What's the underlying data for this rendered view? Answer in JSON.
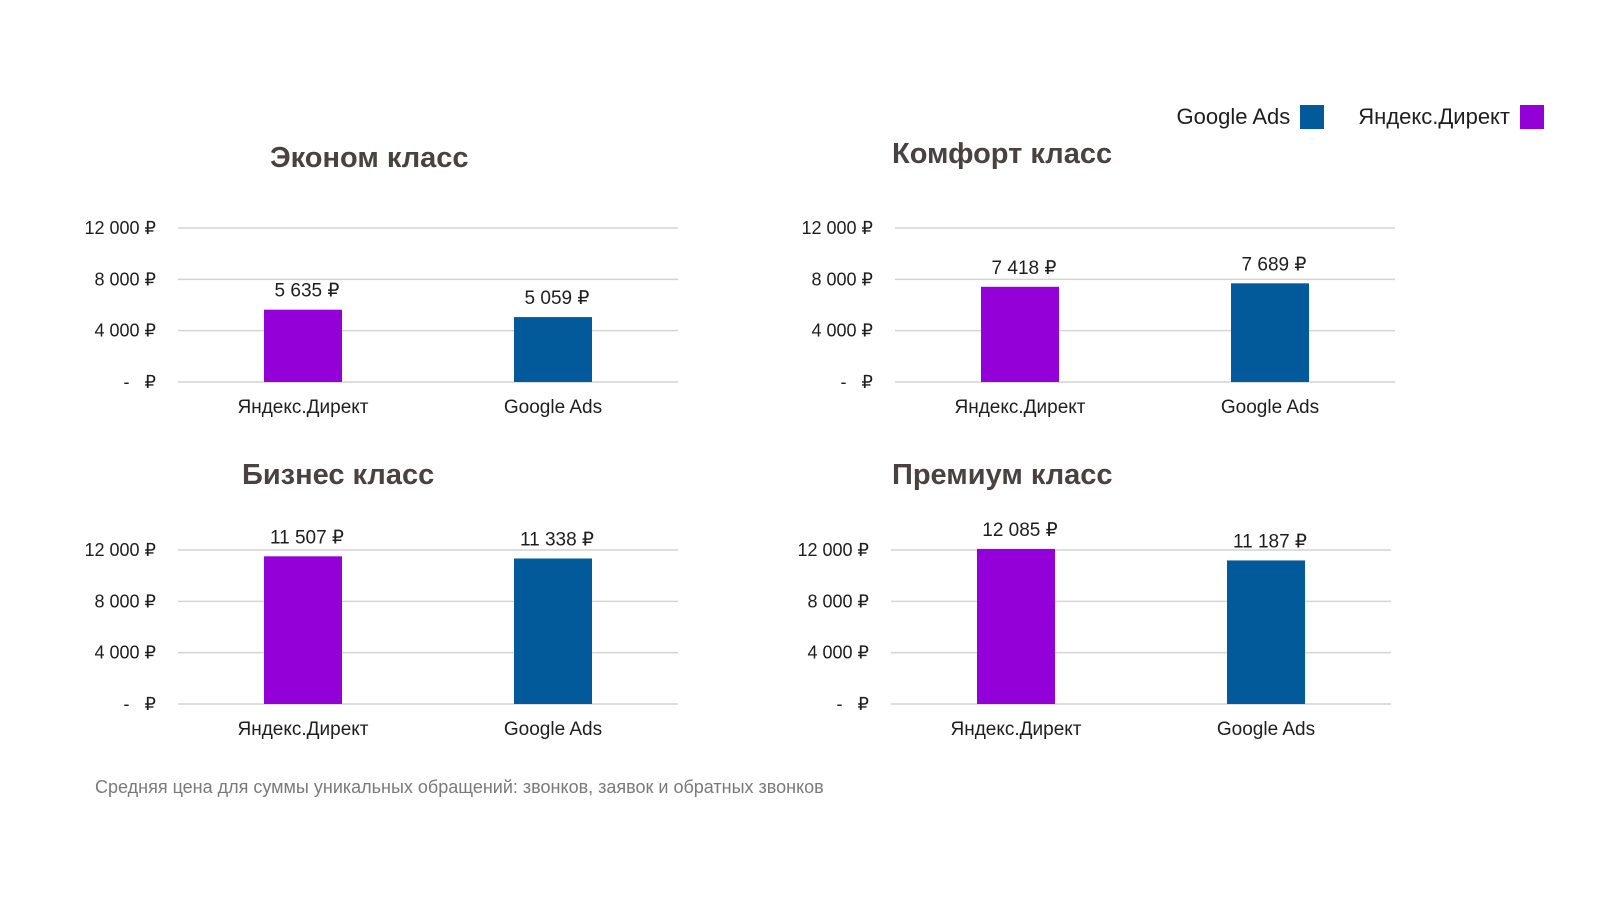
{
  "legend": {
    "items": [
      {
        "label": "Google Ads",
        "color": "#035a9a"
      },
      {
        "label": "Яндекс.Директ",
        "color": "#9400d8"
      }
    ]
  },
  "footnote": "Средняя цена для суммы уникальных обращений: звонков, заявок и обратных звонков",
  "chart_data": [
    {
      "type": "bar",
      "title": "Эконом класс",
      "categories": [
        "Яндекс.Директ",
        "Google Ads"
      ],
      "values": [
        5635,
        5059
      ],
      "value_labels": [
        "5 635 ₽",
        "5 059 ₽"
      ],
      "colors": [
        "#9400d8",
        "#035a9a"
      ],
      "y_ticks": [
        0,
        4000,
        8000,
        12000
      ],
      "y_tick_labels": [
        "-   ₽",
        "4 000 ₽",
        "8 000 ₽",
        "12 000 ₽"
      ],
      "ylim": [
        0,
        12000
      ],
      "grid": true
    },
    {
      "type": "bar",
      "title": "Комфорт класс",
      "categories": [
        "Яндекс.Директ",
        "Google Ads"
      ],
      "values": [
        7418,
        7689
      ],
      "value_labels": [
        "7 418 ₽",
        "7 689 ₽"
      ],
      "colors": [
        "#9400d8",
        "#035a9a"
      ],
      "y_ticks": [
        0,
        4000,
        8000,
        12000
      ],
      "y_tick_labels": [
        "-   ₽",
        "4 000 ₽",
        "8 000 ₽",
        "12 000 ₽"
      ],
      "ylim": [
        0,
        12000
      ],
      "grid": true
    },
    {
      "type": "bar",
      "title": "Бизнес класс",
      "categories": [
        "Яндекс.Директ",
        "Google Ads"
      ],
      "values": [
        11507,
        11338
      ],
      "value_labels": [
        "11 507 ₽",
        "11 338 ₽"
      ],
      "colors": [
        "#9400d8",
        "#035a9a"
      ],
      "y_ticks": [
        0,
        4000,
        8000,
        12000
      ],
      "y_tick_labels": [
        "-   ₽",
        "4 000 ₽",
        "8 000 ₽",
        "12 000 ₽"
      ],
      "ylim": [
        0,
        12000
      ],
      "grid": true
    },
    {
      "type": "bar",
      "title": "Премиум класс",
      "categories": [
        "Яндекс.Директ",
        "Google Ads"
      ],
      "values": [
        12085,
        11187
      ],
      "value_labels": [
        "12 085 ₽",
        "11 187 ₽"
      ],
      "colors": [
        "#9400d8",
        "#035a9a"
      ],
      "y_ticks": [
        0,
        4000,
        8000,
        12000
      ],
      "y_tick_labels": [
        "-   ₽",
        "4 000 ₽",
        "8 000 ₽",
        "12 000 ₽"
      ],
      "ylim": [
        0,
        12000
      ],
      "grid": true
    }
  ]
}
